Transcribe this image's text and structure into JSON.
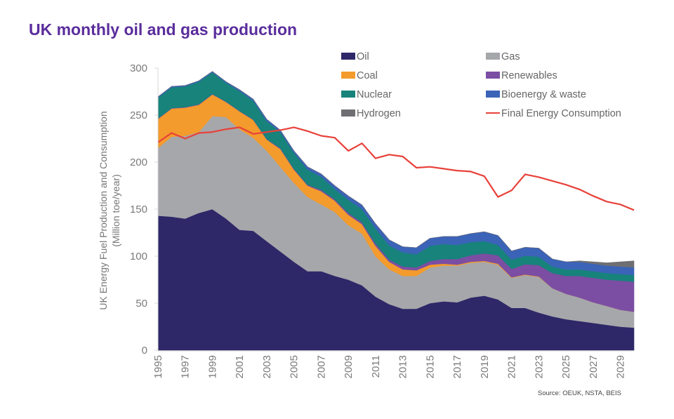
{
  "title": "UK monthly oil and gas production",
  "chart_data": {
    "type": "area",
    "stacked": true,
    "title": "UK monthly oil and gas production",
    "xlabel": "",
    "ylabel": "UK  Energy Fuel Production and Consumption",
    "ylabel2": "(Million toe/year)",
    "ylim": [
      0,
      300
    ],
    "yticks": [
      0,
      50,
      100,
      150,
      200,
      250,
      300
    ],
    "xlim": [
      1995,
      2030
    ],
    "xticks": [
      "1995",
      "1997",
      "1999",
      "2001",
      "2003",
      "2005",
      "2007",
      "2009",
      "2011",
      "2013",
      "2015",
      "2017",
      "2019",
      "2021",
      "2023",
      "2025",
      "2027",
      "2029"
    ],
    "grid": false,
    "legend_position": "top-right",
    "source": "Source: OEUK, NSTA, BEIS",
    "x": [
      1995,
      1996,
      1997,
      1998,
      1999,
      2000,
      2001,
      2002,
      2003,
      2004,
      2005,
      2006,
      2007,
      2008,
      2009,
      2010,
      2011,
      2012,
      2013,
      2014,
      2015,
      2016,
      2017,
      2018,
      2019,
      2020,
      2021,
      2022,
      2023,
      2024,
      2025,
      2026,
      2027,
      2028,
      2029,
      2030
    ],
    "series": [
      {
        "name": "Oil",
        "color": "#2e2869",
        "values": [
          143,
          142,
          140,
          146,
          150,
          140,
          128,
          127,
          116,
          105,
          94,
          84,
          84,
          79,
          75,
          69,
          57,
          49,
          44,
          44,
          50,
          52,
          51,
          56,
          58,
          54,
          45,
          45,
          40,
          36,
          33,
          31,
          29,
          27,
          25,
          24
        ]
      },
      {
        "name": "Gas",
        "color": "#a6a7aa",
        "values": [
          72,
          85,
          88,
          86,
          99,
          108,
          107,
          99,
          96,
          90,
          84,
          79,
          71,
          68,
          58,
          55,
          43,
          37,
          35,
          35,
          38,
          38,
          39,
          37,
          36,
          37,
          32,
          35,
          38,
          30,
          27,
          25,
          22,
          20,
          18,
          17
        ]
      },
      {
        "name": "Coal",
        "color": "#f39b2c",
        "values": [
          31,
          30,
          30,
          29,
          23,
          16,
          19,
          19,
          12,
          19,
          14,
          12,
          14,
          12,
          11,
          10,
          11,
          8,
          7,
          6,
          3,
          2,
          1,
          1,
          1,
          1,
          0.5,
          0.5,
          0.5,
          0,
          0,
          0,
          0,
          0,
          0,
          0
        ]
      },
      {
        "name": "Renewables",
        "color": "#7b4ea3",
        "values": [
          0.5,
          0.5,
          0.5,
          0.5,
          0.5,
          0.5,
          0.5,
          0.5,
          0.5,
          1,
          1,
          1,
          1.5,
          1.5,
          2,
          2,
          2.5,
          2.5,
          3,
          3,
          4,
          5,
          6,
          7,
          8,
          9,
          9,
          11,
          12,
          16,
          19,
          23,
          26,
          28,
          31,
          32
        ]
      },
      {
        "name": "Nuclear",
        "color": "#17837b",
        "values": [
          22,
          22,
          22,
          24,
          23,
          20,
          21,
          20,
          19,
          17,
          17,
          16,
          14,
          11,
          14,
          14,
          16,
          15,
          15,
          14,
          16,
          16,
          15,
          14,
          13,
          11,
          10,
          9,
          9,
          7,
          7,
          7,
          7,
          7,
          7,
          7
        ]
      },
      {
        "name": "Bioenergy & waste",
        "color": "#3b63b8",
        "values": [
          1,
          1,
          1,
          1,
          1,
          1,
          1.5,
          1.5,
          2,
          2,
          2,
          3,
          3,
          3.5,
          4,
          4.5,
          5,
          6,
          6,
          7,
          8,
          8,
          9,
          9,
          10,
          10,
          9,
          9,
          9,
          8,
          8,
          8,
          8,
          8,
          8,
          8
        ]
      },
      {
        "name": "Hydrogen",
        "color": "#6f6f73",
        "values": [
          0,
          0,
          0,
          0,
          0,
          0,
          0,
          0,
          0,
          0,
          0,
          0,
          0,
          0,
          0,
          0,
          0,
          0,
          0,
          0,
          0,
          0,
          0,
          0,
          0,
          0,
          0,
          0,
          0,
          0,
          0,
          1,
          2,
          3,
          5,
          7
        ]
      }
    ],
    "line_series": {
      "name": "Final Energy Consumption",
      "color": "#e8413a",
      "values": [
        221,
        231,
        225,
        231,
        232,
        235,
        237,
        230,
        232,
        234,
        237,
        233,
        228,
        226,
        212,
        220,
        204,
        208,
        206,
        194,
        195,
        193,
        191,
        190,
        185,
        163,
        170,
        187,
        184,
        180,
        176,
        171,
        164,
        158,
        155,
        149
      ]
    }
  },
  "legend": {
    "items": [
      {
        "label": "Oil",
        "color": "#2e2869",
        "kind": "box"
      },
      {
        "label": "Gas",
        "color": "#a6a7aa",
        "kind": "box"
      },
      {
        "label": "Coal",
        "color": "#f39b2c",
        "kind": "box"
      },
      {
        "label": "Renewables",
        "color": "#7b4ea3",
        "kind": "box"
      },
      {
        "label": "Nuclear",
        "color": "#17837b",
        "kind": "box"
      },
      {
        "label": "Bioenergy & waste",
        "color": "#3b63b8",
        "kind": "box"
      },
      {
        "label": "Hydrogen",
        "color": "#6f6f73",
        "kind": "box"
      },
      {
        "label": "Final Energy Consumption",
        "color": "#e8413a",
        "kind": "line"
      }
    ]
  }
}
